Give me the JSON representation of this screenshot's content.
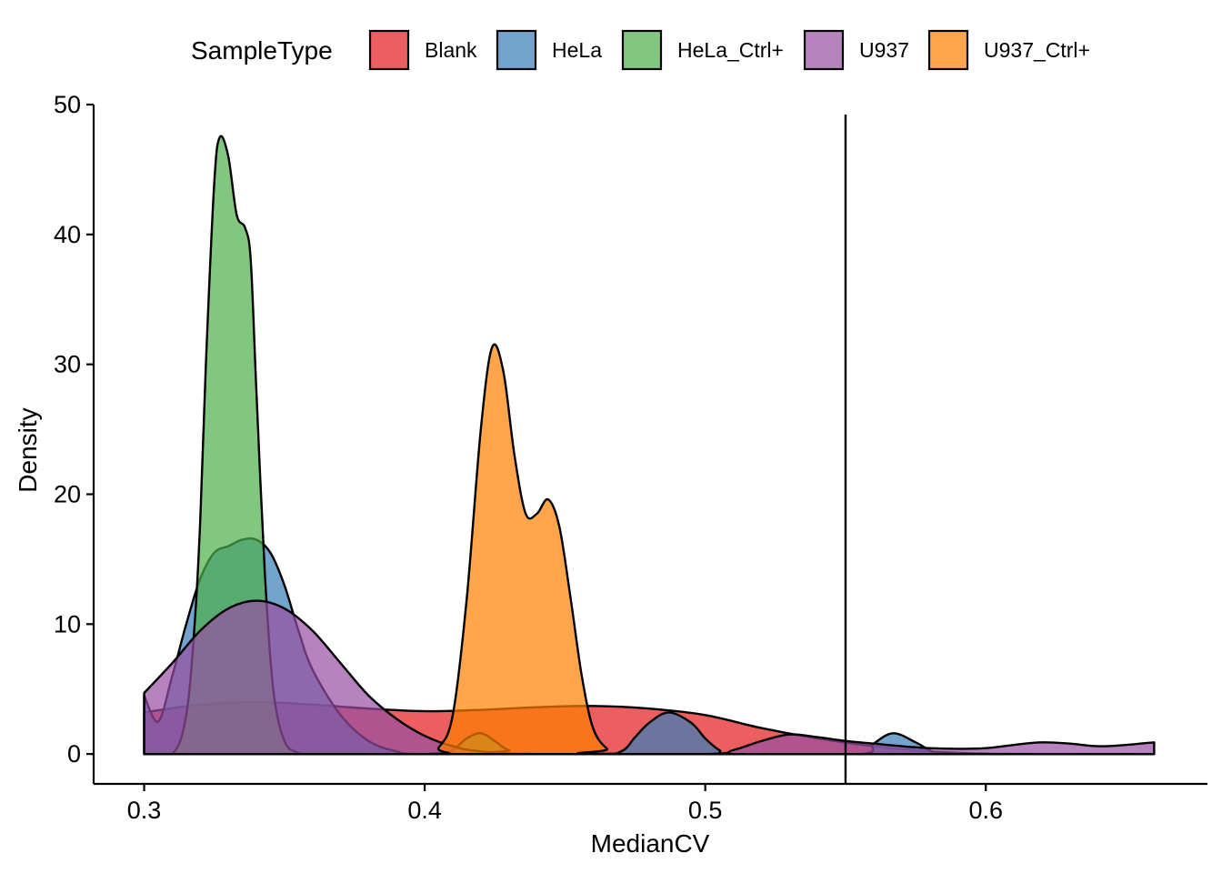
{
  "chart_data": {
    "type": "area",
    "subtype": "density",
    "xlabel": "MedianCV",
    "ylabel": "Density",
    "xlim": [
      0.282,
      0.679
    ],
    "ylim": [
      -2.3,
      50
    ],
    "xticks": [
      0.3,
      0.4,
      0.5,
      0.6
    ],
    "xtick_labels": [
      "0.3",
      "0.4",
      "0.5",
      "0.6"
    ],
    "yticks": [
      0,
      10,
      20,
      30,
      40,
      50
    ],
    "ytick_labels": [
      "0",
      "10",
      "20",
      "30",
      "40",
      "50"
    ],
    "grid": false,
    "legend": {
      "title": "SampleType",
      "position": "top"
    },
    "reference_lines": [
      {
        "orientation": "vertical",
        "x": 0.55
      }
    ],
    "fill_opacity": 0.7,
    "series": [
      {
        "name": "Blank",
        "color": "#E41A1C",
        "points": [
          [
            0.3,
            3.2
          ],
          [
            0.32,
            3.8
          ],
          [
            0.34,
            4.0
          ],
          [
            0.36,
            3.8
          ],
          [
            0.38,
            3.5
          ],
          [
            0.4,
            3.3
          ],
          [
            0.42,
            3.4
          ],
          [
            0.44,
            3.6
          ],
          [
            0.46,
            3.7
          ],
          [
            0.48,
            3.5
          ],
          [
            0.5,
            3.0
          ],
          [
            0.52,
            2.0
          ],
          [
            0.54,
            1.2
          ],
          [
            0.56,
            0.6
          ],
          [
            0.58,
            0.2
          ],
          [
            0.6,
            0.03
          ],
          [
            0.62,
            0.0
          ],
          [
            0.66,
            0.0
          ]
        ]
      },
      {
        "name": "HeLa",
        "color": "#377EB8",
        "points": [
          [
            0.3,
            4.5
          ],
          [
            0.305,
            2.5
          ],
          [
            0.31,
            6.0
          ],
          [
            0.315,
            10.0
          ],
          [
            0.32,
            13.5
          ],
          [
            0.325,
            15.5
          ],
          [
            0.33,
            16.0
          ],
          [
            0.335,
            16.5
          ],
          [
            0.34,
            16.5
          ],
          [
            0.345,
            15.5
          ],
          [
            0.35,
            13.0
          ],
          [
            0.355,
            9.5
          ],
          [
            0.36,
            6.5
          ],
          [
            0.37,
            3.0
          ],
          [
            0.38,
            1.0
          ],
          [
            0.39,
            0.2
          ],
          [
            0.4,
            0.0
          ],
          [
            0.46,
            0.0
          ],
          [
            0.47,
            0.2
          ],
          [
            0.475,
            1.3
          ],
          [
            0.48,
            2.4
          ],
          [
            0.487,
            3.2
          ],
          [
            0.495,
            2.4
          ],
          [
            0.5,
            1.2
          ],
          [
            0.505,
            0.3
          ],
          [
            0.51,
            0.0
          ],
          [
            0.555,
            0.0
          ],
          [
            0.56,
            0.8
          ],
          [
            0.567,
            1.6
          ],
          [
            0.575,
            0.9
          ],
          [
            0.582,
            0.1
          ],
          [
            0.59,
            0.0
          ],
          [
            0.66,
            0.0
          ]
        ]
      },
      {
        "name": "HeLa_Ctrl+",
        "color": "#4DAF4A",
        "points": [
          [
            0.3,
            0.0
          ],
          [
            0.31,
            0.0
          ],
          [
            0.315,
            3.0
          ],
          [
            0.318,
            10.0
          ],
          [
            0.32,
            18.0
          ],
          [
            0.322,
            30.0
          ],
          [
            0.325,
            44.0
          ],
          [
            0.327,
            47.5
          ],
          [
            0.33,
            46.0
          ],
          [
            0.333,
            41.5
          ],
          [
            0.336,
            40.5
          ],
          [
            0.338,
            38.0
          ],
          [
            0.34,
            28.0
          ],
          [
            0.343,
            14.0
          ],
          [
            0.346,
            5.0
          ],
          [
            0.35,
            1.0
          ],
          [
            0.355,
            0.1
          ],
          [
            0.36,
            0.0
          ],
          [
            0.405,
            0.0
          ],
          [
            0.41,
            0.3
          ],
          [
            0.415,
            1.2
          ],
          [
            0.42,
            1.6
          ],
          [
            0.425,
            1.0
          ],
          [
            0.43,
            0.3
          ],
          [
            0.44,
            0.0
          ],
          [
            0.66,
            0.0
          ]
        ]
      },
      {
        "name": "U937",
        "color": "#984EA3",
        "points": [
          [
            0.3,
            4.7
          ],
          [
            0.31,
            7.0
          ],
          [
            0.32,
            9.5
          ],
          [
            0.33,
            11.2
          ],
          [
            0.34,
            11.8
          ],
          [
            0.35,
            11.2
          ],
          [
            0.36,
            9.5
          ],
          [
            0.37,
            7.0
          ],
          [
            0.38,
            4.5
          ],
          [
            0.39,
            2.7
          ],
          [
            0.4,
            1.4
          ],
          [
            0.41,
            0.6
          ],
          [
            0.42,
            0.2
          ],
          [
            0.44,
            0.0
          ],
          [
            0.5,
            0.0
          ],
          [
            0.51,
            0.3
          ],
          [
            0.52,
            1.0
          ],
          [
            0.53,
            1.5
          ],
          [
            0.54,
            1.3
          ],
          [
            0.55,
            1.0
          ],
          [
            0.56,
            0.8
          ],
          [
            0.57,
            0.6
          ],
          [
            0.58,
            0.45
          ],
          [
            0.59,
            0.4
          ],
          [
            0.6,
            0.45
          ],
          [
            0.61,
            0.7
          ],
          [
            0.62,
            0.9
          ],
          [
            0.63,
            0.8
          ],
          [
            0.64,
            0.6
          ],
          [
            0.65,
            0.7
          ],
          [
            0.66,
            0.9
          ]
        ]
      },
      {
        "name": "U937_Ctrl+",
        "color": "#FF7F00",
        "points": [
          [
            0.3,
            0.0
          ],
          [
            0.4,
            0.0
          ],
          [
            0.405,
            0.5
          ],
          [
            0.41,
            3.0
          ],
          [
            0.415,
            12.0
          ],
          [
            0.42,
            25.0
          ],
          [
            0.424,
            31.3
          ],
          [
            0.428,
            29.5
          ],
          [
            0.432,
            23.0
          ],
          [
            0.436,
            18.5
          ],
          [
            0.44,
            18.5
          ],
          [
            0.444,
            19.6
          ],
          [
            0.448,
            17.5
          ],
          [
            0.452,
            12.0
          ],
          [
            0.456,
            6.0
          ],
          [
            0.46,
            2.0
          ],
          [
            0.465,
            0.4
          ],
          [
            0.47,
            0.0
          ],
          [
            0.66,
            0.0
          ]
        ]
      }
    ]
  }
}
